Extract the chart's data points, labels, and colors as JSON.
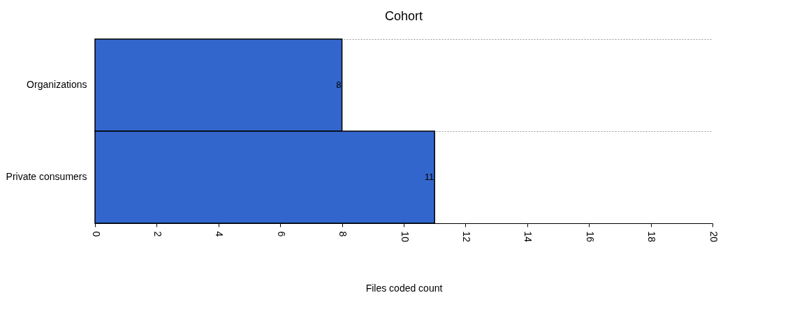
{
  "chart_data": {
    "type": "bar",
    "orientation": "horizontal",
    "title": "Cohort",
    "xlabel": "Files coded count",
    "categories": [
      "Organizations",
      "Private consumers"
    ],
    "values": [
      8,
      11
    ],
    "color": "#3366cc",
    "xlim": [
      0,
      20
    ],
    "xticks": [
      0,
      2,
      4,
      6,
      8,
      10,
      12,
      14,
      16,
      18,
      20
    ],
    "grid": "y",
    "data_labels": true
  }
}
